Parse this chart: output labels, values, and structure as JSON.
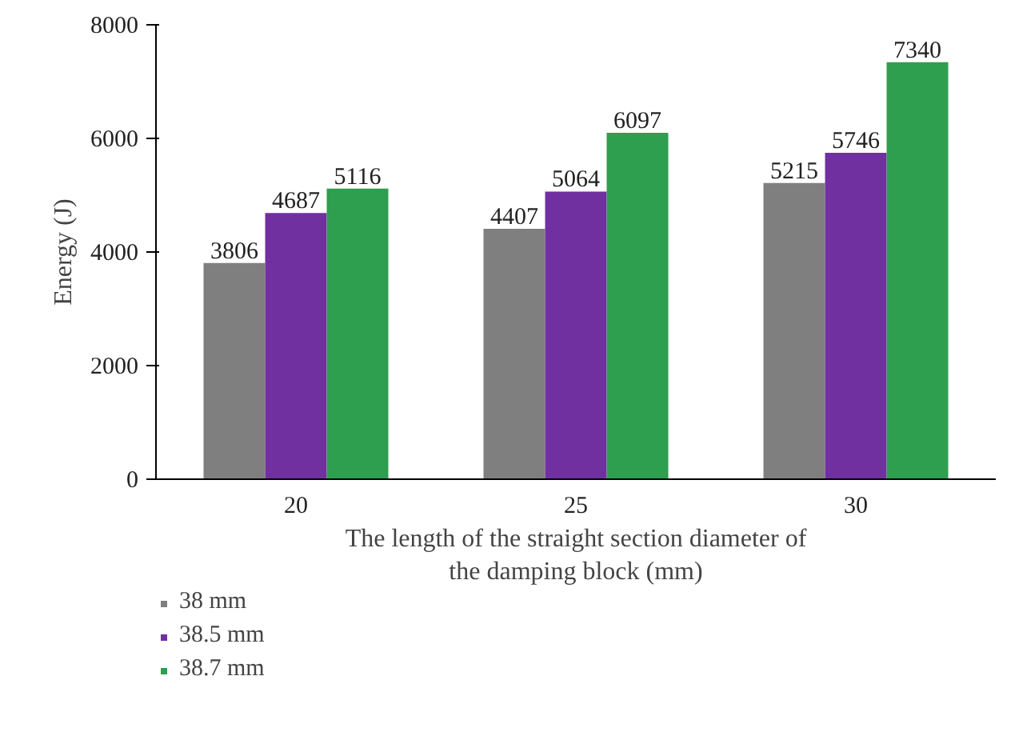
{
  "chart_data": {
    "type": "bar",
    "xlabel": "The length of the straight section diameter of the damping block (mm)",
    "ylabel": "Energy (J)",
    "categories": [
      "20",
      "25",
      "30"
    ],
    "series": [
      {
        "name": "38 mm",
        "color": "#7f7f7f",
        "values": [
          3806,
          4407,
          5215
        ]
      },
      {
        "name": "38.5 mm",
        "color": "#7030a0",
        "values": [
          4687,
          5064,
          5746
        ]
      },
      {
        "name": "38.7 mm",
        "color": "#2e9e4f",
        "values": [
          5116,
          6097,
          7340
        ]
      }
    ],
    "ylim": [
      0,
      8000
    ],
    "yticks": [
      0,
      2000,
      4000,
      6000,
      8000
    ],
    "grid": false,
    "legend": "bottom left",
    "data_labels": true
  }
}
